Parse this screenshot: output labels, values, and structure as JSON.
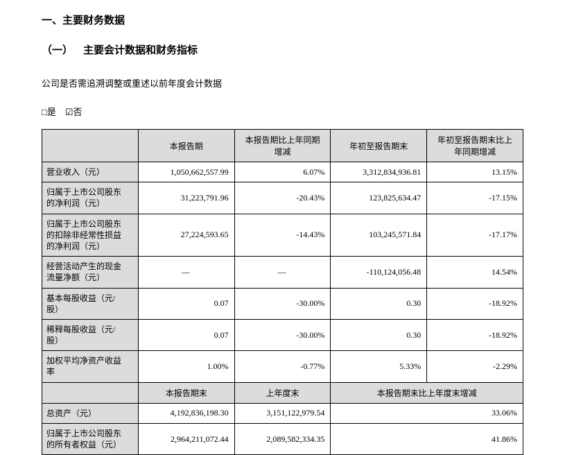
{
  "headings": {
    "section": "一、主要财务数据",
    "subsection": "（一） 主要会计数据和财务指标"
  },
  "paragraph": "公司是否需追溯调整或重述以前年度会计数据",
  "checkboxes": "□是 ☑否",
  "table1": {
    "headers": {
      "blank": "",
      "col1": "本报告期",
      "col2": "本报告期比上年同期\n增减",
      "col3": "年初至报告期末",
      "col4": "年初至报告期末比上\n年同期增减"
    },
    "rows": [
      {
        "label": "营业收入（元）",
        "c1": "1,050,662,557.99",
        "c2": "6.07%",
        "c3": "3,312,834,936.81",
        "c4": "13.15%"
      },
      {
        "label": "归属于上市公司股东\n的净利润（元）",
        "c1": "31,223,791.96",
        "c2": "-20.43%",
        "c3": "123,825,634.47",
        "c4": "-17.15%"
      },
      {
        "label": "归属于上市公司股东\n的扣除非经常性损益\n的净利润（元）",
        "c1": "27,224,593.65",
        "c2": "-14.43%",
        "c3": "103,245,571.84",
        "c4": "-17.17%"
      },
      {
        "label": "经营活动产生的现金\n流量净额（元）",
        "c1": "—",
        "c2": "—",
        "c3": "-110,124,056.48",
        "c4": "14.54%"
      },
      {
        "label": "基本每股收益（元/\n股）",
        "c1": "0.07",
        "c2": "-30.00%",
        "c3": "0.30",
        "c4": "-18.92%"
      },
      {
        "label": "稀释每股收益（元/\n股）",
        "c1": "0.07",
        "c2": "-30.00%",
        "c3": "0.30",
        "c4": "-18.92%"
      },
      {
        "label": "加权平均净资产收益\n率",
        "c1": "1.00%",
        "c2": "-0.77%",
        "c3": "5.33%",
        "c4": "-2.29%"
      }
    ],
    "headers2": {
      "blank": "",
      "col1": "本报告期末",
      "col2": "上年度末",
      "col34": "本报告期末比上年度末增减"
    },
    "rows2": [
      {
        "label": "总资产（元）",
        "c1": "4,192,836,198.30",
        "c2": "3,151,122,979.54",
        "c34": "33.06%"
      },
      {
        "label": "归属于上市公司股东\n的所有者权益（元）",
        "c1": "2,964,211,072.44",
        "c2": "2,089,582,334.35",
        "c34": "41.86%"
      }
    ]
  }
}
